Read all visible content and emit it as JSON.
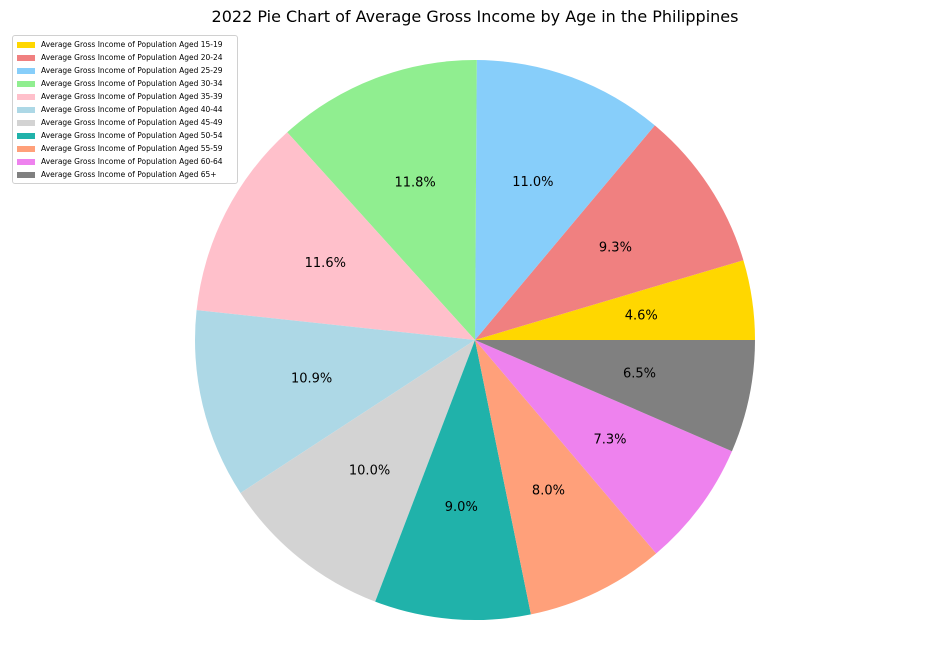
{
  "chart_data": {
    "type": "pie",
    "title": "2022 Pie Chart of Average Gross Income by Age in the Philippines",
    "legend_position": "top-left",
    "start_angle_deg": 0,
    "direction": "counterclockwise",
    "slices": [
      {
        "label": "Average Gross Income of Population Aged 15-19",
        "value": 4.6,
        "value_label": "4.6%",
        "color": "#ffd700"
      },
      {
        "label": "Average Gross Income of Population Aged 20-24",
        "value": 9.3,
        "value_label": "9.3%",
        "color": "#f08080"
      },
      {
        "label": "Average Gross Income of Population Aged 25-29",
        "value": 11.0,
        "value_label": "11.0%",
        "color": "#87cefa"
      },
      {
        "label": "Average Gross Income of Population Aged 30-34",
        "value": 11.8,
        "value_label": "11.8%",
        "color": "#90ee90"
      },
      {
        "label": "Average Gross Income of Population Aged 35-39",
        "value": 11.6,
        "value_label": "11.6%",
        "color": "#ffc0cb"
      },
      {
        "label": "Average Gross Income of Population Aged 40-44",
        "value": 10.9,
        "value_label": "10.9%",
        "color": "#add8e6"
      },
      {
        "label": "Average Gross Income of Population Aged 45-49",
        "value": 10.0,
        "value_label": "10.0%",
        "color": "#d3d3d3"
      },
      {
        "label": "Average Gross Income of Population Aged 50-54",
        "value": 9.0,
        "value_label": "9.0%",
        "color": "#20b2aa"
      },
      {
        "label": "Average Gross Income of Population Aged 55-59",
        "value": 8.0,
        "value_label": "8.0%",
        "color": "#ffa07a"
      },
      {
        "label": "Average Gross Income of Population Aged 60-64",
        "value": 7.3,
        "value_label": "7.3%",
        "color": "#ee82ee"
      },
      {
        "label": "Average Gross Income of Population Aged 65+",
        "value": 6.5,
        "value_label": "6.5%",
        "color": "#808080"
      }
    ]
  }
}
